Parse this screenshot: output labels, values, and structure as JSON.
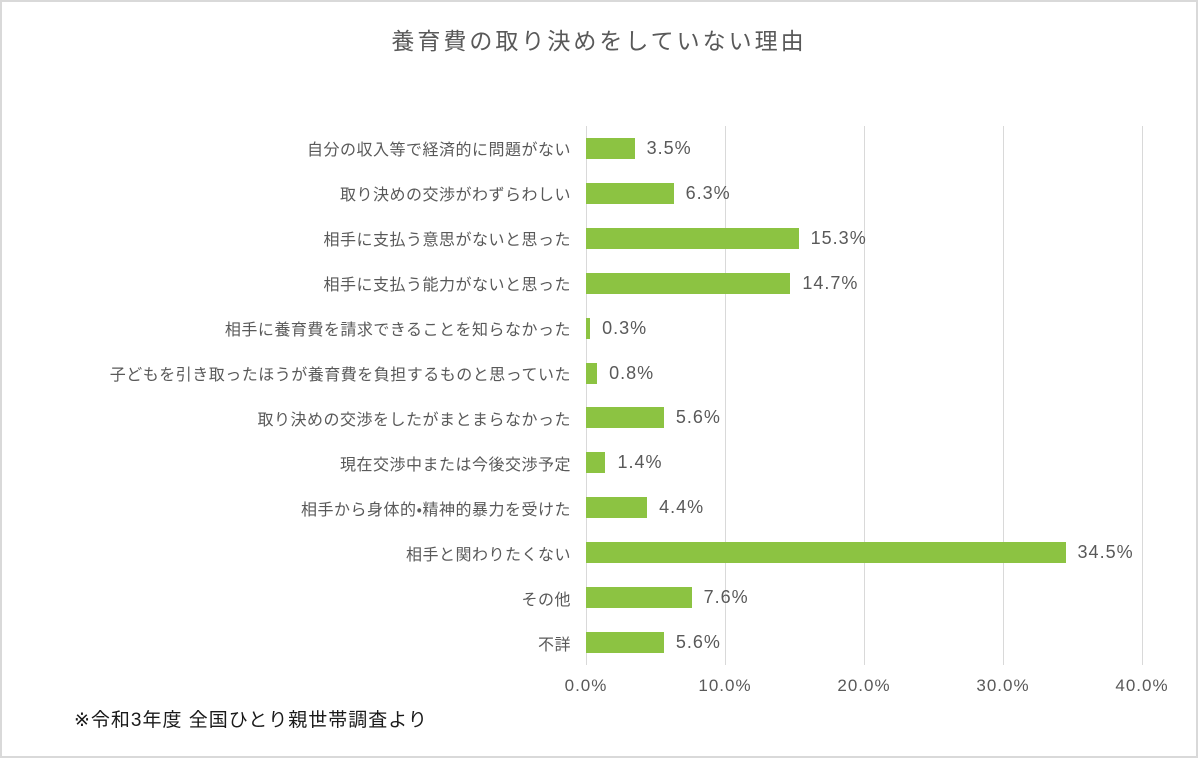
{
  "title": "養育費の取り決めをしていない理由",
  "footnote": "※令和3年度  全国ひとり親世帯調査より",
  "colors": {
    "bar": "#8cc342",
    "gridline": "#d9d9d9",
    "chart_text": "#595959",
    "footnote_text": "#1a1a1a",
    "frame_border": "#d9d9d9"
  },
  "chart_data": {
    "type": "bar",
    "orientation": "horizontal",
    "title": "養育費の取り決めをしていない理由",
    "categories": [
      "自分の収入等で経済的に問題がない",
      "取り決めの交渉がわずらわしい",
      "相手に支払う意思がないと思った",
      "相手に支払う能力がないと思った",
      "相手に養育費を請求できることを知らなかった",
      "子どもを引き取ったほうが養育費を負担するものと思っていた",
      "取り決めの交渉をしたがまとまらなかった",
      "現在交渉中または今後交渉予定",
      "相手から身体的・精神的暴力を受けた",
      "相手と関わりたくない",
      "その他",
      "不詳"
    ],
    "values": [
      3.5,
      6.3,
      15.3,
      14.7,
      0.3,
      0.8,
      5.6,
      1.4,
      4.4,
      34.5,
      7.6,
      5.6
    ],
    "value_labels": [
      "3.5%",
      "6.3%",
      "15.3%",
      "14.7%",
      "0.3%",
      "0.8%",
      "5.6%",
      "1.4%",
      "4.4%",
      "34.5%",
      "7.6%",
      "5.6%"
    ],
    "xlabel": "",
    "ylabel": "",
    "xlim": [
      0,
      40
    ],
    "x_ticks": [
      "0.0%",
      "10.0%",
      "20.0%",
      "30.0%",
      "40.0%"
    ],
    "x_tick_values": [
      0,
      10,
      20,
      30,
      40
    ],
    "grid": true,
    "legend": false
  }
}
